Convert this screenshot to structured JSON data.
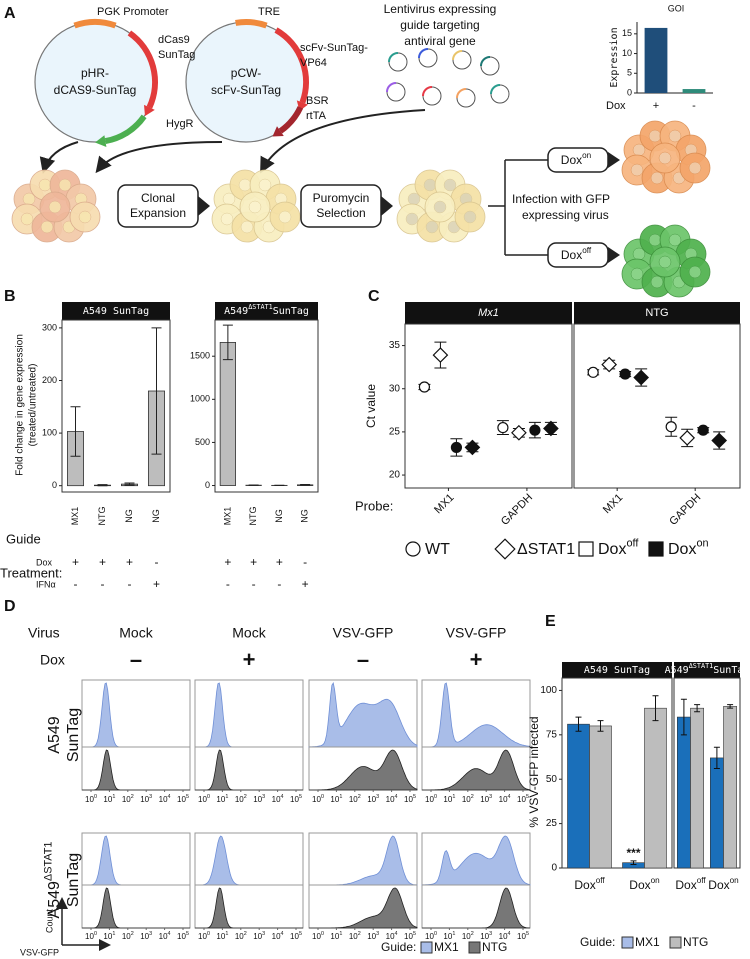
{
  "panel_labels": [
    "A",
    "B",
    "C",
    "D",
    "E"
  ],
  "panel_a": {
    "plasmid_1": {
      "name": [
        "pHR-",
        "dCAS9-SunTag"
      ],
      "promoter": "PGK Promoter",
      "gene": [
        "dCas9",
        "SunTag"
      ],
      "marker": "HygR"
    },
    "plasmid_2": {
      "name": [
        "pCW-",
        "scFv-SunTag"
      ],
      "promoter": "TRE",
      "gene": [
        "scFv-SunTag-",
        "VP64"
      ],
      "marker": [
        "BSR",
        "rtTA"
      ]
    },
    "lentivirus": [
      "Lentivirus expressing",
      "guide targeting",
      "antiviral gene"
    ],
    "step_1": [
      "Clonal",
      "Expansion"
    ],
    "step_2": [
      "Puromycin",
      "Selection"
    ],
    "branch_on": {
      "text": "Dox",
      "sup": "on"
    },
    "branch_off": {
      "text": "Dox",
      "sup": "off"
    },
    "infection": [
      "Infection with GFP",
      "expressing virus"
    ]
  },
  "chart_data": [
    {
      "type": "bar",
      "title": "GOI",
      "y_label": "Expression",
      "x_label": "Dox",
      "categories": [
        "+",
        "-"
      ],
      "values": [
        16.5,
        1
      ],
      "colors": [
        "#1f4e7a",
        "#2e8b7a"
      ],
      "ylim": [
        0,
        18
      ],
      "yticks": [
        0,
        5,
        10,
        15
      ]
    },
    {
      "type": "facet_bar",
      "y_label": [
        "Fold change in gene expression",
        "(treated/untreated)"
      ],
      "row_label": "Guide",
      "treatment_label": "Treatment:",
      "treatments": [
        {
          "name": "Dox",
          "values": [
            "+",
            "+",
            "+",
            "-"
          ]
        },
        {
          "name": "IFNα",
          "values": [
            "-",
            "-",
            "-",
            "+"
          ]
        }
      ],
      "color": "#bdbdbd",
      "facets": [
        {
          "title": "A549 SunTag",
          "categories": [
            "MX1",
            "NTG",
            "NG",
            "NG"
          ],
          "values": [
            103,
            1,
            3,
            180
          ],
          "errors": [
            47,
            1,
            2,
            120
          ],
          "ylim": [
            -12,
            315
          ],
          "yticks": [
            0,
            100,
            200,
            300
          ]
        },
        {
          "title": {
            "text": "A549",
            "sup": "ΔSTAT1",
            "tail": "SunTag"
          },
          "categories": [
            "MX1",
            "NTG",
            "NG",
            "NG"
          ],
          "values": [
            1660,
            4,
            2,
            8
          ],
          "errors": [
            200,
            2,
            1,
            4
          ],
          "ylim": [
            -75,
            1920
          ],
          "yticks": [
            0,
            500,
            1000,
            1500
          ]
        }
      ]
    },
    {
      "type": "facet_dot",
      "y_label": "Ct value",
      "x_label": "Probe:",
      "categories": [
        "MX1",
        "GAPDH"
      ],
      "ylim": [
        18.5,
        37.5
      ],
      "yticks": [
        20,
        25,
        30,
        35
      ],
      "facets": [
        {
          "title": "Mx1",
          "italic": true,
          "series": [
            {
              "shape": "circle",
              "filled": false,
              "values": [
                30.2,
                25.5
              ],
              "errors": [
                0.3,
                0.8
              ]
            },
            {
              "shape": "diamond",
              "filled": false,
              "values": [
                33.9,
                24.9
              ],
              "errors": [
                1.5,
                0.5
              ]
            },
            {
              "shape": "circle",
              "filled": true,
              "values": [
                23.2,
                25.2
              ],
              "errors": [
                1.0,
                0.9
              ]
            },
            {
              "shape": "diamond",
              "filled": true,
              "values": [
                23.2,
                25.4
              ],
              "errors": [
                0.5,
                0.7
              ]
            }
          ]
        },
        {
          "title": "NTG",
          "italic": false,
          "series": [
            {
              "shape": "circle",
              "filled": false,
              "values": [
                31.9,
                25.6
              ],
              "errors": [
                0.3,
                1.1
              ]
            },
            {
              "shape": "diamond",
              "filled": false,
              "values": [
                32.8,
                24.3
              ],
              "errors": [
                0.5,
                1.0
              ]
            },
            {
              "shape": "circle",
              "filled": true,
              "values": [
                31.7,
                25.2
              ],
              "errors": [
                0.3,
                0.3
              ]
            },
            {
              "shape": "diamond",
              "filled": true,
              "values": [
                31.3,
                24.0
              ],
              "errors": [
                1.0,
                1.0
              ]
            }
          ]
        }
      ],
      "legend": [
        {
          "shape": "circle",
          "filled": false,
          "label": "WT"
        },
        {
          "shape": "diamond",
          "filled": false,
          "label": "ΔSTAT1"
        },
        {
          "shape": "square",
          "filled": false,
          "label": {
            "text": "Dox",
            "sup": "off"
          }
        },
        {
          "shape": "square",
          "filled": true,
          "label": {
            "text": "Dox",
            "sup": "on"
          }
        }
      ]
    },
    {
      "type": "facet_grouped_bar",
      "y_label": "% VSV-GFP infected",
      "categories": [
        {
          "text": "Dox",
          "sup": "off"
        },
        {
          "text": "Dox",
          "sup": "on"
        }
      ],
      "legend_title": "Guide:",
      "series": [
        {
          "name": "MX1",
          "color": "#1a6fba"
        },
        {
          "name": "NTG",
          "color": "#bdbdbd"
        }
      ],
      "ylim": [
        0,
        107
      ],
      "yticks": [
        0,
        25,
        50,
        75,
        100
      ],
      "facets": [
        {
          "title": "A549 SunTag",
          "values": [
            [
              81,
              3
            ],
            [
              80,
              90
            ]
          ],
          "errors": [
            [
              4,
              1
            ],
            [
              3,
              7
            ]
          ],
          "annotations": [
            [
              null,
              "***"
            ],
            [
              null,
              null
            ]
          ]
        },
        {
          "title": {
            "text": "A549",
            "sup": "ΔSTAT1",
            "tail": "SunTag"
          },
          "values": [
            [
              85,
              62
            ],
            [
              90,
              91
            ]
          ],
          "errors": [
            [
              10,
              6
            ],
            [
              2,
              1
            ]
          ],
          "annotations": [
            [
              null,
              null
            ],
            [
              null,
              null
            ]
          ]
        }
      ]
    }
  ],
  "panel_d": {
    "virus_label": "Virus",
    "dox_label": "Dox",
    "columns": [
      {
        "virus": "Mock",
        "dox": "–"
      },
      {
        "virus": "Mock",
        "dox": "+"
      },
      {
        "virus": "VSV-GFP",
        "dox": "–"
      },
      {
        "virus": "VSV-GFP",
        "dox": "+"
      }
    ],
    "rows": [
      {
        "label": [
          "A549",
          "SunTag"
        ]
      },
      {
        "label": [
          {
            "text": "A549",
            "sup": "ΔSTAT1"
          },
          "SunTag"
        ]
      }
    ],
    "x_ticks": [
      {
        "text": "10",
        "sup": "0"
      },
      {
        "text": "10",
        "sup": "1"
      },
      {
        "text": "10",
        "sup": "2"
      },
      {
        "text": "10",
        "sup": "3"
      },
      {
        "text": "10",
        "sup": "4"
      },
      {
        "text": "10",
        "sup": "5"
      }
    ],
    "y_axis": "Count",
    "x_axis": "VSV-GFP",
    "legend_title": "Guide:",
    "legend": [
      {
        "name": "MX1",
        "color": "#a9bde8"
      },
      {
        "name": "NTG",
        "color": "#777777"
      }
    ]
  }
}
